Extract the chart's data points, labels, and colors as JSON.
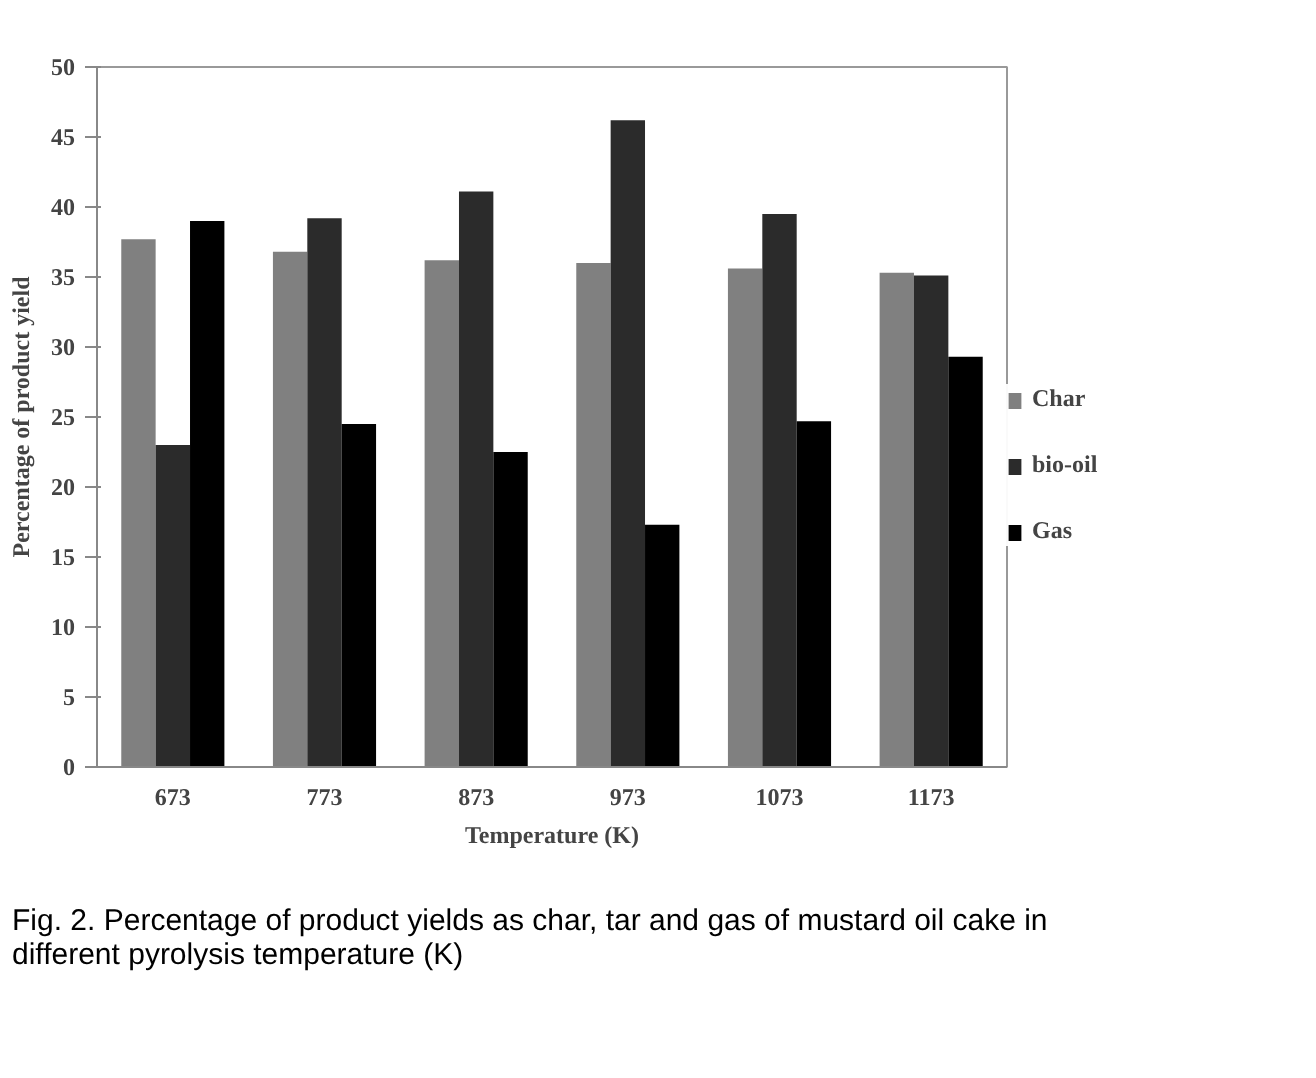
{
  "chart_data": {
    "type": "bar",
    "xlabel": "Temperature (K)",
    "ylabel": "Percentage of product yield",
    "categories": [
      "673",
      "773",
      "873",
      "973",
      "1073",
      "1173"
    ],
    "series": [
      {
        "name": "Char",
        "color": "#808080",
        "values": [
          37.7,
          36.8,
          36.2,
          36.0,
          35.6,
          35.3
        ]
      },
      {
        "name": "bio-oil",
        "color": "#2b2b2b",
        "values": [
          23.0,
          39.2,
          41.1,
          46.2,
          39.5,
          35.1
        ]
      },
      {
        "name": "Gas",
        "color": "#000000",
        "values": [
          39.0,
          24.5,
          22.5,
          17.3,
          24.7,
          29.3
        ]
      }
    ],
    "ylim": [
      0,
      50
    ],
    "yticks": [
      0,
      5,
      10,
      15,
      20,
      25,
      30,
      35,
      40,
      45,
      50
    ],
    "grid": false,
    "legend": "right",
    "annotations": [
      "Fig. 2. Percentage of product yields as char, tar and gas of mustard oil cake in different pyrolysis temperature (K)"
    ]
  }
}
